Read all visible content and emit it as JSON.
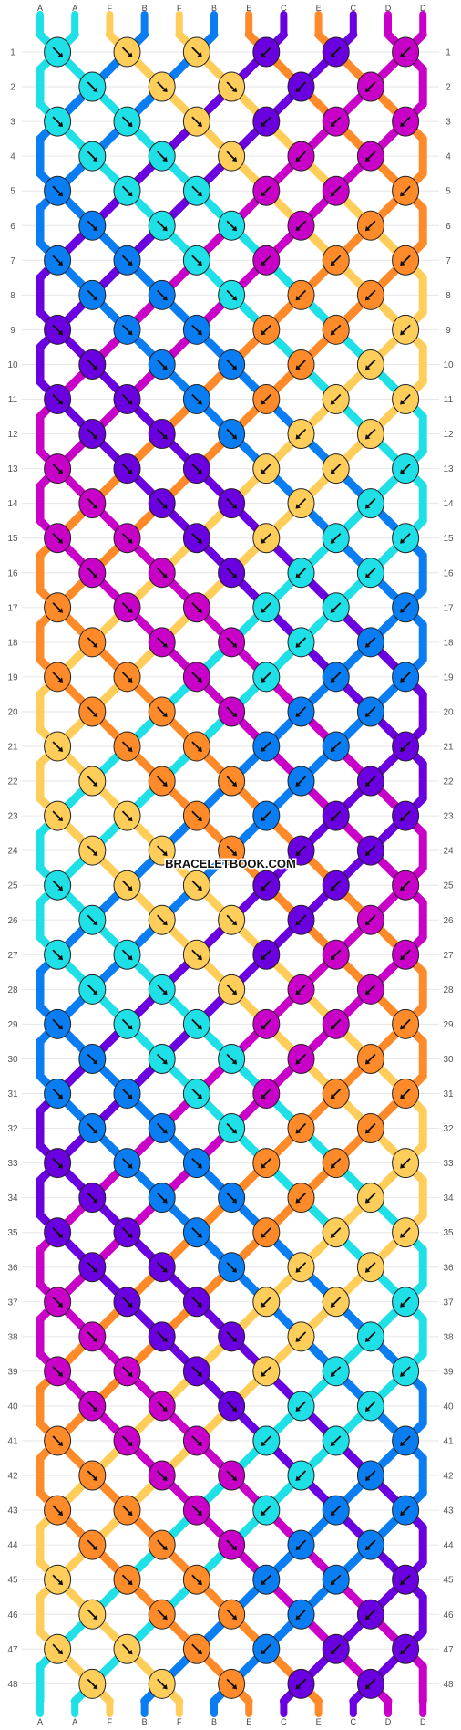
{
  "watermark": "BRACELETBOOK.COM",
  "colors": {
    "A": "#1ee0e6",
    "B": "#0a7df2",
    "C": "#6a00e0",
    "D": "#c800c8",
    "E": "#ff8a2a",
    "F": "#ffce5a"
  },
  "strings_top": [
    "A",
    "A",
    "F",
    "B",
    "F",
    "B",
    "E",
    "C",
    "E",
    "C",
    "D",
    "D"
  ],
  "strings_bottom": [
    "A",
    "A",
    "F",
    "B",
    "F",
    "B",
    "E",
    "C",
    "E",
    "C",
    "D",
    "D"
  ],
  "rows": [
    "1",
    "2",
    "3",
    "4",
    "5",
    "6",
    "7",
    "8",
    "9",
    "10",
    "11",
    "12",
    "13",
    "14",
    "15",
    "16",
    "17",
    "18",
    "19",
    "20",
    "21",
    "22",
    "23",
    "24",
    "25",
    "26",
    "27",
    "28",
    "29",
    "30",
    "31",
    "32",
    "33",
    "34",
    "35",
    "36",
    "37",
    "38",
    "39",
    "40",
    "41",
    "42",
    "43",
    "44",
    "45",
    "46",
    "47",
    "48"
  ],
  "knot_arrow_icon": "diagonal-arrow-icon"
}
